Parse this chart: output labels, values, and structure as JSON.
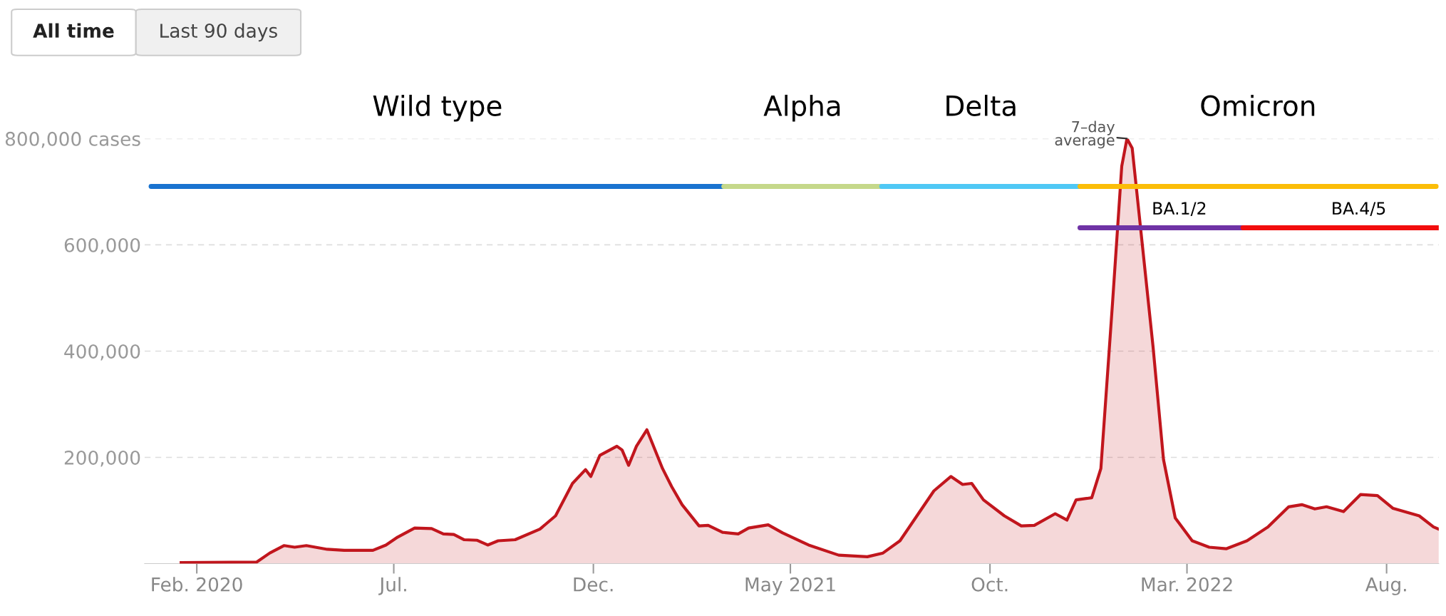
{
  "chart_data": {
    "type": "area",
    "annotations": [
      "All time",
      "Last 90 days",
      {
        "text": "7–day average",
        "x": "2022-01-14",
        "y": 800000
      }
    ],
    "series": [
      {
        "color": "#c1161d",
        "x": [
          "2020-01-20",
          "2020-03-18",
          "2020-03-28",
          "2020-04-08",
          "2020-04-16",
          "2020-04-25",
          "2020-05-11",
          "2020-05-24",
          "2020-06-15",
          "2020-06-25",
          "2020-07-04",
          "2020-07-17",
          "2020-07-30",
          "2020-08-08",
          "2020-08-16",
          "2020-08-24",
          "2020-09-03",
          "2020-09-11",
          "2020-09-19",
          "2020-10-02",
          "2020-10-21",
          "2020-11-02",
          "2020-11-15",
          "2020-11-25",
          "2020-11-29",
          "2020-12-06",
          "2020-12-19",
          "2020-12-23",
          "2020-12-28",
          "2021-01-03",
          "2021-01-11",
          "2021-01-23",
          "2021-01-30",
          "2021-02-07",
          "2021-02-20",
          "2021-02-27",
          "2021-03-10",
          "2021-03-22",
          "2021-03-30",
          "2021-04-14",
          "2021-04-25",
          "2021-05-15",
          "2021-06-07",
          "2021-06-29",
          "2021-07-11",
          "2021-07-24",
          "2021-08-06",
          "2021-08-19",
          "2021-09-01",
          "2021-09-10",
          "2021-09-17",
          "2021-09-26",
          "2021-10-12",
          "2021-10-25",
          "2021-11-04",
          "2021-11-20",
          "2021-11-29",
          "2021-12-06",
          "2021-12-18",
          "2021-12-25",
          "2022-01-03",
          "2022-01-10",
          "2022-01-14",
          "2022-01-18",
          "2022-01-26",
          "2022-02-03",
          "2022-02-11",
          "2022-02-20",
          "2022-03-05",
          "2022-03-18",
          "2022-03-31",
          "2022-04-16",
          "2022-05-02",
          "2022-05-18",
          "2022-05-28",
          "2022-06-07",
          "2022-06-16",
          "2022-06-29",
          "2022-07-12",
          "2022-07-25",
          "2022-08-06",
          "2022-08-26",
          "2022-09-06",
          "2022-09-10"
        ],
        "values": [
          2000,
          3000,
          20000,
          34000,
          31000,
          34000,
          27000,
          25000,
          25000,
          35000,
          50000,
          67000,
          66000,
          56000,
          55000,
          45000,
          44000,
          35000,
          43000,
          45000,
          65000,
          90000,
          151000,
          177000,
          164000,
          204000,
          221000,
          214000,
          185000,
          221000,
          252000,
          179000,
          145000,
          111000,
          71000,
          72000,
          59000,
          56000,
          67000,
          73000,
          58000,
          35000,
          16000,
          13000,
          20000,
          43000,
          90000,
          137000,
          164000,
          149000,
          151000,
          120000,
          90000,
          71000,
          72000,
          94000,
          82000,
          120000,
          124000,
          179000,
          493000,
          748000,
          800000,
          782000,
          595000,
          408000,
          196000,
          86000,
          43000,
          31000,
          28000,
          43000,
          69000,
          107000,
          111000,
          103000,
          107000,
          98000,
          130000,
          128000,
          104000,
          90000,
          69000,
          65000
        ]
      },
      {
        "type": "line",
        "name": "Wild type",
        "color": "#1a73d0",
        "x": [
          "2019-12-28",
          "2021-03-11"
        ],
        "values": [
          710000,
          710000
        ]
      },
      {
        "type": "line",
        "name": "Alpha",
        "color": "#c5d88a",
        "x": [
          "2021-03-11",
          "2021-07-10"
        ],
        "values": [
          710000,
          710000
        ]
      },
      {
        "type": "line",
        "name": "Delta",
        "color": "#4fc8f5",
        "x": [
          "2021-07-10",
          "2021-12-09"
        ],
        "values": [
          710000,
          710000
        ]
      },
      {
        "type": "line",
        "name": "Omicron",
        "color": "#fbbd08",
        "x": [
          "2021-12-09",
          "2022-09-08"
        ],
        "values": [
          710000,
          710000
        ]
      },
      {
        "type": "line",
        "name": "BA.1/2",
        "color": "#6f33a5",
        "x": [
          "2021-12-09",
          "2022-04-13"
        ],
        "values": [
          632000,
          632000
        ]
      },
      {
        "type": "line",
        "name": "BA.4/5",
        "color": "#f20d0d",
        "x": [
          "2022-04-13",
          "2022-09-10"
        ],
        "values": [
          632000,
          632000
        ]
      }
    ],
    "xlim": [
      "2019-12-23",
      "2022-09-10"
    ],
    "xticks": [
      {
        "value": "2020-02-01",
        "label": "Feb. 2020"
      },
      {
        "value": "2020-07-01",
        "label": "Jul."
      },
      {
        "value": "2020-12-01",
        "label": "Dec."
      },
      {
        "value": "2021-05-01",
        "label": "May 2021"
      },
      {
        "value": "2021-10-01",
        "label": "Oct."
      },
      {
        "value": "2022-03-01",
        "label": "Mar. 2022"
      },
      {
        "value": "2022-08-01",
        "label": "Aug."
      }
    ],
    "ylim": [
      0,
      800000
    ],
    "yticks": [
      {
        "value": 200000,
        "label": "200,000"
      },
      {
        "value": 400000,
        "label": "400,000"
      },
      {
        "value": 600000,
        "label": "600,000"
      },
      {
        "value": 800000,
        "label": "800,000 cases"
      }
    ],
    "grid": "y",
    "line_style": "solid",
    "marker": "none",
    "legend": false
  }
}
